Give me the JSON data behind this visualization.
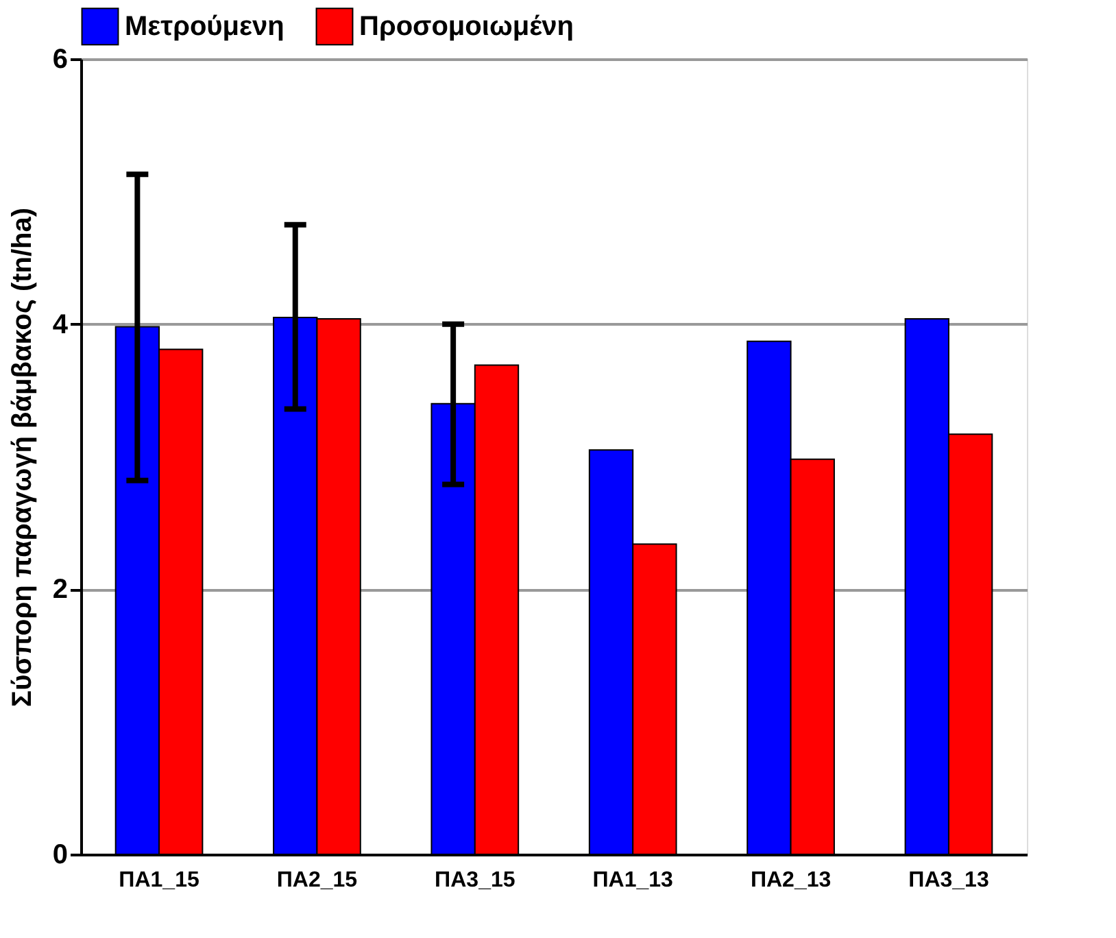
{
  "chart_data": {
    "type": "bar",
    "ylabel": "Σύσπορη παραγωγή βάμβακος (tn/ha)",
    "categories": [
      "ΠΑ1_15",
      "ΠΑ2_15",
      "ΠΑ3_15",
      "ΠΑ1_13",
      "ΠΑ2_13",
      "ΠΑ3_13"
    ],
    "series": [
      {
        "name": "Μετρούμενη",
        "color": "#0000ff",
        "values": [
          3.98,
          4.05,
          3.4,
          3.05,
          3.87,
          4.04
        ],
        "errors": [
          [
            2.82,
            5.13
          ],
          [
            3.36,
            4.75
          ],
          [
            2.79,
            4.0
          ],
          null,
          null,
          null
        ]
      },
      {
        "name": "Προσομοιωμένη",
        "color": "#ff0000",
        "values": [
          3.81,
          4.04,
          3.69,
          2.34,
          2.98,
          3.17
        ]
      }
    ],
    "ylim": [
      0,
      6
    ],
    "yticks": [
      0,
      2,
      4,
      6
    ],
    "grid": "y",
    "legend": "top"
  }
}
